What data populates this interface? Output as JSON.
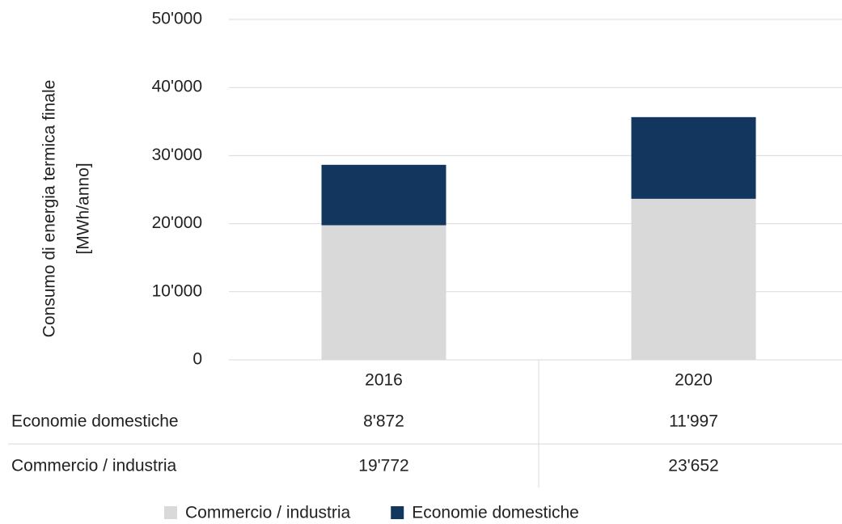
{
  "chart_data": {
    "type": "stacked_bar",
    "ylabel": [
      "Consumo di energia termica finale",
      "[MWh/anno]"
    ],
    "categories": [
      "2016",
      "2020"
    ],
    "series": [
      {
        "name": "Commercio / industria",
        "color": "#d9d9d9",
        "values": [
          19772,
          23652
        ],
        "value_labels": [
          "19'772",
          "23'652"
        ]
      },
      {
        "name": "Economie domestiche",
        "color": "#12365e",
        "values": [
          8872,
          11997
        ],
        "value_labels": [
          "8'872",
          "11'997"
        ]
      }
    ],
    "ylim": [
      0,
      50000
    ],
    "yticks": [
      0,
      {
        "value": 10000,
        "label": "10'000"
      },
      {
        "value": 20000,
        "label": "20'000"
      },
      {
        "value": 30000,
        "label": "30'000"
      },
      {
        "value": 40000,
        "label": "40'000"
      },
      {
        "value": 50000,
        "label": "50'000"
      }
    ],
    "grid": true
  }
}
